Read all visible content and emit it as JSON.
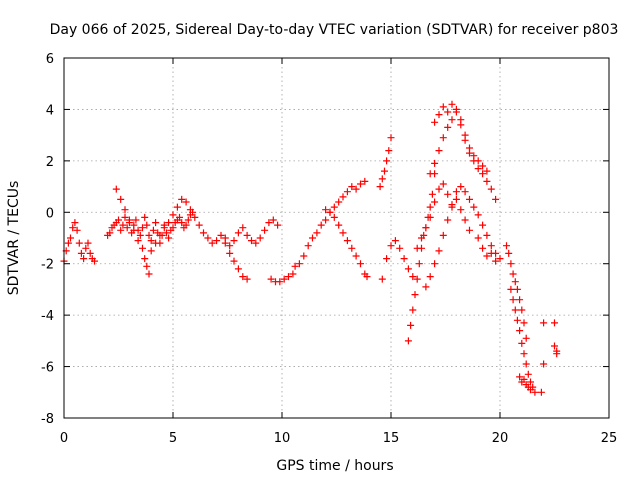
{
  "chart_data": {
    "type": "scatter",
    "title": "Day 066 of 2025, Sidereal Day-to-day VTEC variation (SDTVAR) for receiver p803",
    "xlabel": "GPS time / hours",
    "ylabel": "SDTVAR / TECUs",
    "xlim": [
      0,
      25
    ],
    "ylim": [
      -8,
      6
    ],
    "xticks": [
      "0",
      "5",
      "10",
      "15",
      "20",
      "25"
    ],
    "yticks": [
      "-8",
      "-6",
      "-4",
      "-2",
      "0",
      "2",
      "4",
      "6"
    ],
    "grid": true,
    "marker": "plus",
    "color": "#ff0000",
    "series": [
      {
        "name": "SDTVAR",
        "x": [
          0.0,
          0.1,
          0.2,
          0.3,
          0.4,
          0.5,
          0.6,
          0.7,
          0.8,
          0.9,
          1.0,
          1.1,
          1.2,
          1.3,
          1.4,
          2.0,
          2.1,
          2.2,
          2.3,
          2.4,
          2.5,
          2.6,
          2.7,
          2.8,
          2.9,
          3.0,
          3.1,
          3.2,
          3.3,
          3.4,
          3.5,
          3.6,
          3.7,
          3.8,
          3.9,
          4.0,
          4.1,
          4.2,
          4.3,
          4.4,
          4.5,
          4.6,
          4.7,
          4.8,
          4.9,
          5.0,
          5.1,
          5.2,
          5.3,
          5.4,
          5.5,
          5.6,
          5.7,
          5.8,
          5.9,
          2.4,
          2.6,
          2.8,
          3.0,
          3.2,
          3.4,
          3.6,
          3.7,
          3.8,
          3.9,
          4.0,
          4.2,
          4.4,
          4.6,
          4.8,
          5.0,
          5.2,
          5.4,
          5.6,
          5.8,
          6.0,
          6.2,
          6.4,
          6.6,
          6.8,
          7.0,
          7.2,
          7.4,
          7.6,
          7.8,
          8.0,
          8.2,
          8.4,
          8.6,
          8.8,
          9.0,
          9.2,
          9.4,
          9.6,
          9.8,
          7.4,
          7.6,
          7.8,
          8.0,
          8.2,
          8.4,
          9.5,
          9.7,
          9.9,
          10.1,
          10.3,
          10.5,
          10.6,
          10.8,
          11.0,
          11.2,
          11.4,
          11.6,
          11.8,
          12.0,
          12.2,
          12.4,
          12.6,
          12.8,
          13.0,
          13.2,
          13.4,
          13.6,
          13.8,
          12.0,
          12.2,
          12.4,
          12.6,
          12.8,
          13.0,
          13.2,
          13.4,
          13.6,
          13.8,
          13.9,
          14.5,
          14.6,
          14.7,
          14.8,
          14.9,
          15.0,
          14.6,
          14.8,
          15.0,
          15.2,
          15.4,
          15.6,
          15.8,
          16.0,
          15.8,
          15.9,
          16.0,
          16.1,
          16.2,
          16.3,
          16.4,
          16.5,
          16.6,
          16.7,
          16.8,
          16.9,
          17.0,
          16.2,
          16.4,
          16.6,
          16.8,
          17.0,
          17.2,
          17.4,
          17.6,
          17.8,
          18.0,
          18.2,
          18.4,
          18.6,
          16.8,
          17.0,
          17.2,
          17.4,
          17.6,
          17.8,
          18.0,
          18.2,
          18.4,
          18.6,
          18.8,
          19.0,
          19.2,
          19.4,
          19.6,
          19.8,
          16.6,
          16.8,
          17.0,
          17.2,
          17.4,
          17.6,
          17.8,
          18.0,
          18.2,
          18.4,
          18.6,
          18.8,
          19.0,
          19.2,
          19.4,
          19.6,
          19.8,
          17.0,
          17.2,
          17.4,
          17.6,
          17.8,
          18.0,
          18.2,
          18.4,
          18.6,
          18.8,
          19.0,
          19.2,
          19.4,
          19.0,
          19.2,
          19.4,
          19.6,
          19.8,
          20.0,
          20.3,
          20.4,
          20.5,
          20.6,
          20.7,
          20.8,
          20.9,
          21.0,
          21.1,
          21.2,
          20.5,
          20.6,
          20.7,
          20.8,
          20.9,
          21.0,
          21.1,
          21.2,
          21.3,
          21.4,
          21.5,
          21.6,
          20.9,
          21.0,
          21.1,
          21.2,
          21.3,
          21.4,
          21.9,
          22.0,
          22.0,
          22.5,
          22.5,
          22.6,
          22.6
        ],
        "y": [
          -1.9,
          -1.5,
          -1.2,
          -1.0,
          -0.6,
          -0.4,
          -0.7,
          -1.2,
          -1.6,
          -1.8,
          -1.4,
          -1.2,
          -1.6,
          -1.8,
          -1.9,
          -0.9,
          -0.8,
          -0.6,
          -0.5,
          -0.4,
          -0.3,
          -0.7,
          -0.5,
          -0.2,
          -0.6,
          -0.4,
          -0.8,
          -0.5,
          -0.3,
          -0.7,
          -0.9,
          -0.6,
          -0.2,
          -0.5,
          -0.9,
          -1.1,
          -0.7,
          -0.4,
          -0.8,
          -1.2,
          -0.9,
          -0.5,
          -0.8,
          -1.0,
          -0.7,
          -0.6,
          -0.4,
          -0.3,
          -0.2,
          -0.4,
          -0.6,
          -0.5,
          -0.3,
          -0.1,
          0.0,
          0.9,
          0.5,
          0.1,
          -0.3,
          -0.7,
          -1.1,
          -1.4,
          -1.8,
          -2.1,
          -2.4,
          -1.5,
          -1.2,
          -0.9,
          -0.6,
          -0.4,
          -0.1,
          0.2,
          0.5,
          0.4,
          0.1,
          -0.2,
          -0.5,
          -0.8,
          -1.0,
          -1.2,
          -1.1,
          -0.9,
          -1.0,
          -1.3,
          -1.1,
          -0.8,
          -0.6,
          -0.9,
          -1.1,
          -1.2,
          -1.0,
          -0.7,
          -0.4,
          -0.3,
          -0.5,
          -1.2,
          -1.6,
          -1.9,
          -2.2,
          -2.5,
          -2.6,
          -2.6,
          -2.7,
          -2.7,
          -2.6,
          -2.5,
          -2.4,
          -2.1,
          -2.0,
          -1.7,
          -1.3,
          -1.0,
          -0.8,
          -0.5,
          -0.3,
          0.0,
          0.2,
          0.4,
          0.6,
          0.8,
          1.0,
          0.9,
          1.1,
          1.2,
          0.1,
          0.0,
          -0.2,
          -0.5,
          -0.8,
          -1.1,
          -1.4,
          -1.7,
          -2.0,
          -2.4,
          -2.5,
          1.0,
          1.3,
          1.6,
          2.0,
          2.4,
          2.9,
          -2.6,
          -1.8,
          -1.3,
          -1.1,
          -1.4,
          -1.8,
          -2.2,
          -2.5,
          -5.0,
          -4.4,
          -3.8,
          -3.2,
          -2.6,
          -2.0,
          -1.4,
          -0.9,
          -0.6,
          -0.2,
          0.2,
          0.7,
          1.5,
          -1.4,
          -1.0,
          -0.6,
          -0.2,
          0.4,
          0.9,
          1.1,
          0.7,
          0.2,
          0.5,
          0.1,
          -0.3,
          -0.7,
          1.5,
          1.9,
          2.4,
          2.9,
          3.3,
          3.6,
          3.9,
          3.4,
          2.8,
          2.3,
          2.0,
          1.7,
          1.5,
          1.2,
          0.9,
          0.5,
          -2.9,
          -2.5,
          -2.0,
          -1.5,
          -0.9,
          -0.3,
          0.3,
          0.8,
          1.0,
          0.8,
          0.5,
          0.2,
          -0.1,
          -0.5,
          -0.9,
          -1.3,
          -1.6,
          3.5,
          3.8,
          4.1,
          3.9,
          4.2,
          4.0,
          3.6,
          3.0,
          2.5,
          2.2,
          2.0,
          1.8,
          1.6,
          -1.0,
          -1.4,
          -1.7,
          -1.6,
          -1.9,
          -1.8,
          -1.3,
          -1.6,
          -2.0,
          -2.4,
          -2.7,
          -3.0,
          -3.4,
          -3.8,
          -4.3,
          -4.9,
          -3.0,
          -3.4,
          -3.8,
          -4.2,
          -4.6,
          -5.1,
          -5.5,
          -5.9,
          -6.3,
          -6.6,
          -6.8,
          -7.0,
          -6.4,
          -6.6,
          -6.5,
          -6.7,
          -6.8,
          -6.9,
          -7.0,
          -4.3,
          -5.9,
          -4.3,
          -5.2,
          -5.5,
          -5.4
        ]
      }
    ]
  }
}
